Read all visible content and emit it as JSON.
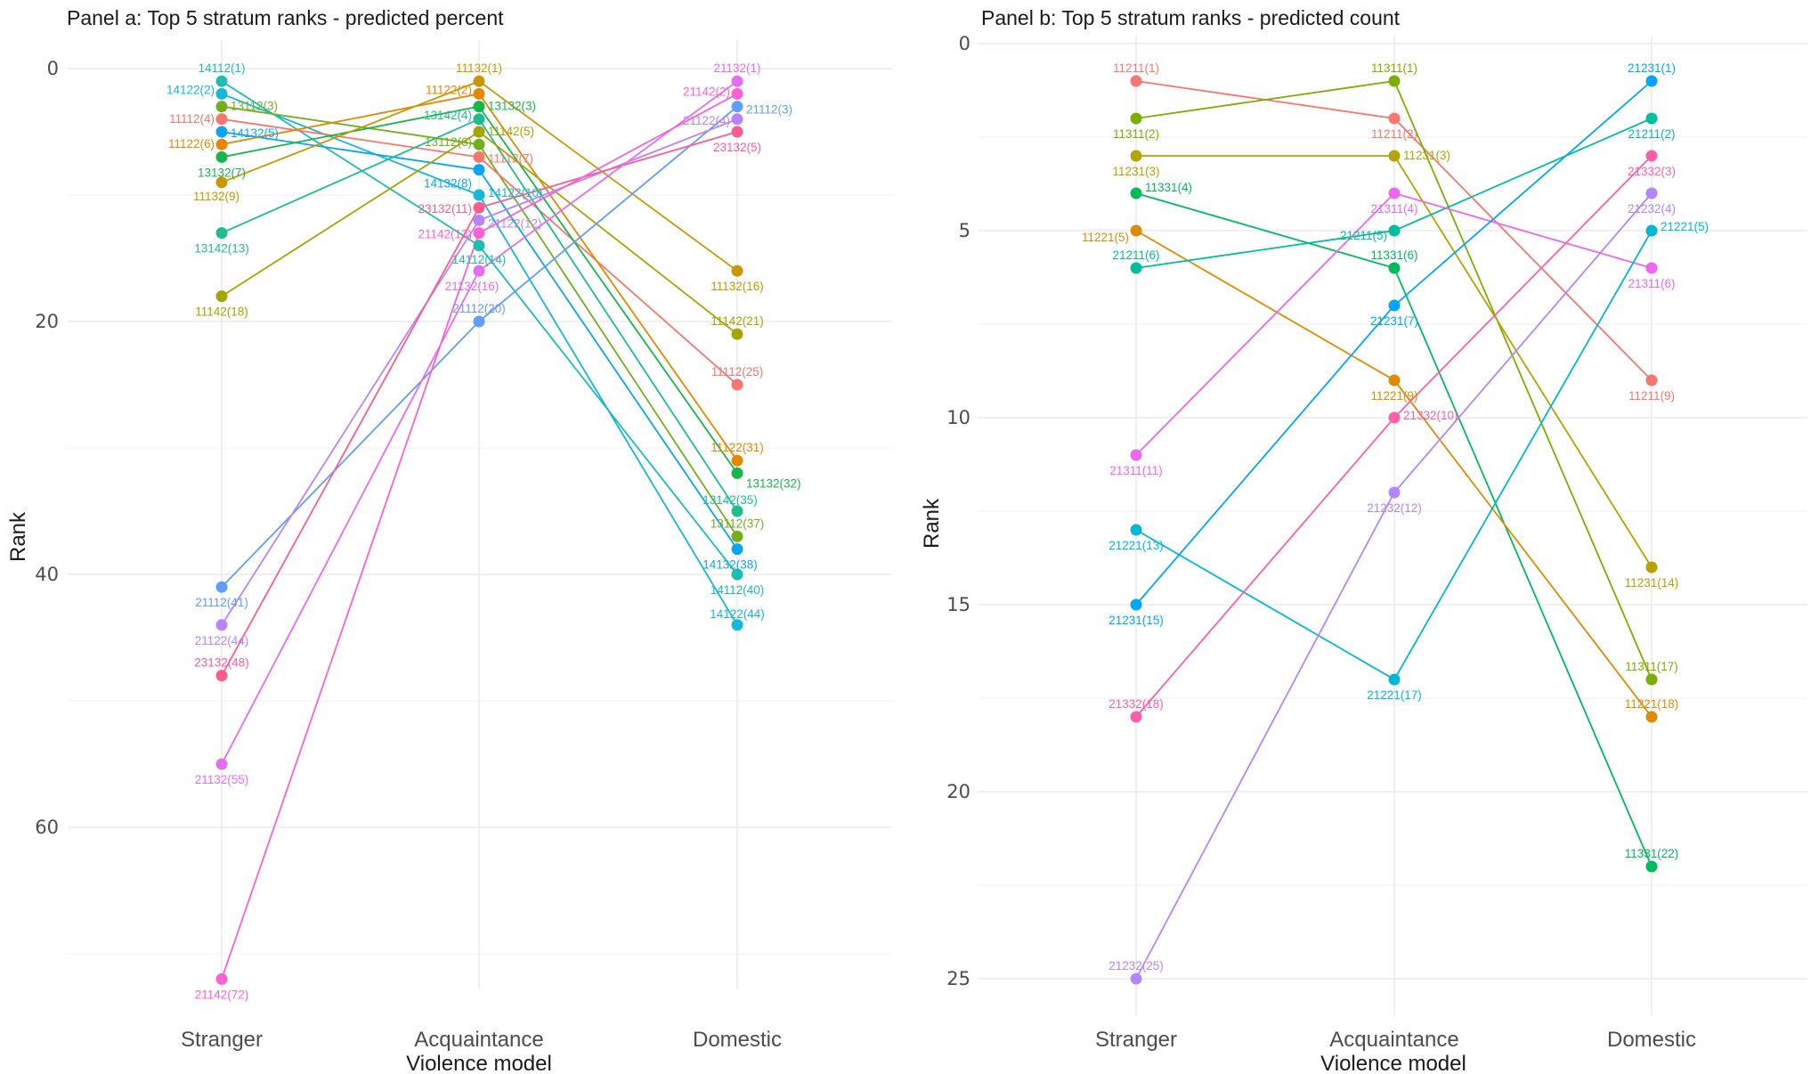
{
  "chart_data": [
    {
      "type": "line",
      "title": "Panel a: Top 5 stratum ranks - predicted percent",
      "xlabel": "Violence model",
      "ylabel": "Rank",
      "categories": [
        "Stranger",
        "Acquaintance",
        "Domestic"
      ],
      "ylim": [
        0,
        75
      ],
      "y_reversed": true,
      "yticks": [
        0,
        20,
        40,
        60
      ],
      "minor_yticks": [
        10,
        30,
        50,
        70
      ],
      "grid": true,
      "legend": "none",
      "series": [
        {
          "name": "14112",
          "values": [
            1,
            14,
            40
          ],
          "color": "#1ABFB0"
        },
        {
          "name": "14122",
          "values": [
            2,
            10,
            44
          ],
          "color": "#14B8D8"
        },
        {
          "name": "13112",
          "values": [
            3,
            6,
            37
          ],
          "color": "#72AF1D"
        },
        {
          "name": "11112",
          "values": [
            4,
            7,
            25
          ],
          "color": "#F8766D"
        },
        {
          "name": "14132",
          "values": [
            5,
            8,
            38
          ],
          "color": "#0AA5F0"
        },
        {
          "name": "11122",
          "values": [
            6,
            2,
            31
          ],
          "color": "#E58700"
        },
        {
          "name": "13132",
          "values": [
            7,
            3,
            32
          ],
          "color": "#17B64A"
        },
        {
          "name": "11132",
          "values": [
            9,
            1,
            16
          ],
          "color": "#C99800"
        },
        {
          "name": "13142",
          "values": [
            13,
            4,
            35
          ],
          "color": "#1EBE8C"
        },
        {
          "name": "11142",
          "values": [
            18,
            5,
            21
          ],
          "color": "#A3A500"
        },
        {
          "name": "21112",
          "values": [
            41,
            20,
            3
          ],
          "color": "#619CFF"
        },
        {
          "name": "21122",
          "values": [
            44,
            12,
            4
          ],
          "color": "#B983FF"
        },
        {
          "name": "23132",
          "values": [
            48,
            11,
            5
          ],
          "color": "#FF5C8E"
        },
        {
          "name": "21132",
          "values": [
            55,
            16,
            1
          ],
          "color": "#E76BF3"
        },
        {
          "name": "21142",
          "values": [
            72,
            13,
            2
          ],
          "color": "#FD61D1"
        }
      ]
    },
    {
      "type": "line",
      "title": "Panel b: Top 5 stratum ranks - predicted count",
      "xlabel": "Violence model",
      "ylabel": "Rank",
      "categories": [
        "Stranger",
        "Acquaintance",
        "Domestic"
      ],
      "ylim": [
        0,
        26
      ],
      "y_reversed": true,
      "yticks": [
        0,
        5,
        10,
        15,
        20,
        25
      ],
      "minor_yticks": [
        2.5,
        7.5,
        12.5,
        17.5,
        22.5
      ],
      "grid": true,
      "legend": "none",
      "series": [
        {
          "name": "11211",
          "values": [
            1,
            2,
            9
          ],
          "color": "#F8766D"
        },
        {
          "name": "11311",
          "values": [
            2,
            1,
            17
          ],
          "color": "#7CAE00"
        },
        {
          "name": "11231",
          "values": [
            3,
            3,
            14
          ],
          "color": "#B5A300"
        },
        {
          "name": "11331",
          "values": [
            4,
            6,
            22
          ],
          "color": "#00BA5C"
        },
        {
          "name": "11221",
          "values": [
            5,
            9,
            18
          ],
          "color": "#E18A00"
        },
        {
          "name": "21211",
          "values": [
            6,
            5,
            2
          ],
          "color": "#00BE9E"
        },
        {
          "name": "21311",
          "values": [
            11,
            4,
            6
          ],
          "color": "#ED68ED"
        },
        {
          "name": "21221",
          "values": [
            13,
            17,
            5
          ],
          "color": "#00B8D4"
        },
        {
          "name": "21231",
          "values": [
            15,
            7,
            1
          ],
          "color": "#00A5FF"
        },
        {
          "name": "21332",
          "values": [
            18,
            10,
            3
          ],
          "color": "#FF5FA8"
        },
        {
          "name": "21232",
          "values": [
            25,
            12,
            4
          ],
          "color": "#B385FF"
        }
      ]
    }
  ]
}
